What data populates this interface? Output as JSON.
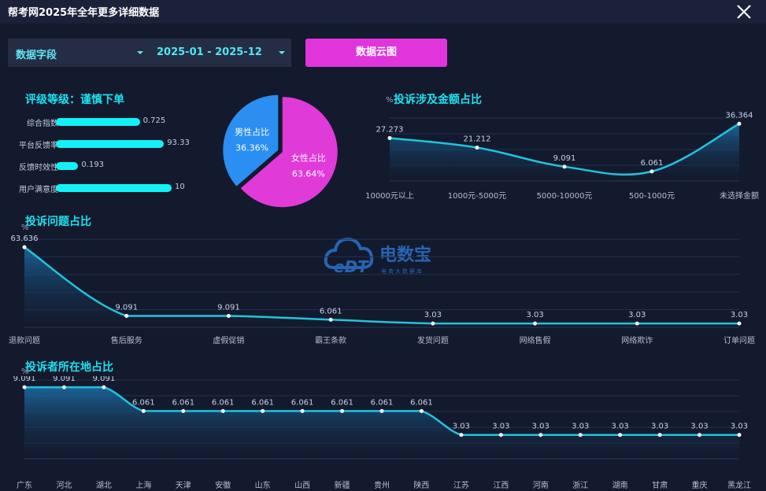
{
  "window": {
    "title": "帮考网2025年全年更多详细数据"
  },
  "toolbar": {
    "field_select": "数据字段",
    "date_range": "2025-01 - 2025-12",
    "cloud_button": "数据云图"
  },
  "rating": {
    "title_prefix": "评级等级：",
    "title_value": "谨慎下单",
    "items": [
      {
        "label": "综合指数",
        "value": "0.725",
        "fraction": 0.725
      },
      {
        "label": "平台反馈率",
        "value": "93.33",
        "fraction": 0.9333
      },
      {
        "label": "反馈时效性",
        "value": "0.193",
        "fraction": 0.193
      },
      {
        "label": "用户满意度",
        "value": "10",
        "fraction": 1.0
      }
    ]
  },
  "watermark": {
    "brand": "电数宝",
    "sub": "电商大数据库",
    "logo_text": "eDT"
  },
  "colors": {
    "accent": "#1fe0ee",
    "male": "#2b8ef2",
    "female": "#e03ad8",
    "bar": "#12f2f6",
    "line": "#22c3dc"
  },
  "chart_data": [
    {
      "type": "pie",
      "title": "",
      "slices": [
        {
          "name": "男性占比",
          "value": 36.36,
          "label": "36.36%",
          "color": "#2b8ef2"
        },
        {
          "name": "女性占比",
          "value": 63.64,
          "label": "63.64%",
          "color": "#e03ad8"
        }
      ]
    },
    {
      "type": "area",
      "title": "投诉涉及金额占比",
      "ylabel": "%",
      "categories": [
        "10000元以上",
        "1000元-5000元",
        "5000-10000元",
        "500-1000元",
        "未选择金额"
      ],
      "values": [
        27.273,
        21.212,
        9.091,
        6.061,
        36.364
      ],
      "labels": [
        "27.273",
        "21.212",
        "9.091",
        "6.061",
        "36.364"
      ],
      "ylim": [
        0,
        40
      ],
      "grid": true
    },
    {
      "type": "area",
      "title": "投诉问题占比",
      "ylabel": "%",
      "categories": [
        "退款问题",
        "售后服务",
        "虚假促销",
        "霸王条款",
        "发货问题",
        "网络售假",
        "网络欺诈",
        "订单问题"
      ],
      "values": [
        63.636,
        9.091,
        9.091,
        6.061,
        3.03,
        3.03,
        3.03,
        3.03
      ],
      "labels": [
        "63.636",
        "9.091",
        "9.091",
        "6.061",
        "3.03",
        "3.03",
        "3.03",
        "3.03"
      ],
      "ylim": [
        0,
        70
      ],
      "grid": true
    },
    {
      "type": "area",
      "title": "投诉者所在地占比",
      "ylabel": "%",
      "categories": [
        "广东",
        "河北",
        "湖北",
        "上海",
        "天津",
        "安徽",
        "山东",
        "山西",
        "新疆",
        "贵州",
        "陕西",
        "江苏",
        "江西",
        "河南",
        "浙江",
        "湖南",
        "甘肃",
        "重庆",
        "黑龙江"
      ],
      "values": [
        9.091,
        9.091,
        9.091,
        6.061,
        6.061,
        6.061,
        6.061,
        6.061,
        6.061,
        6.061,
        6.061,
        3.03,
        3.03,
        3.03,
        3.03,
        3.03,
        3.03,
        3.03,
        3.03
      ],
      "labels": [
        "9.091",
        "9.091",
        "9.091",
        "6.061",
        "6.061",
        "6.061",
        "6.061",
        "6.061",
        "6.061",
        "6.061",
        "6.061",
        "3.03",
        "3.03",
        "3.03",
        "3.03",
        "3.03",
        "3.03",
        "3.03",
        "3.03"
      ],
      "ylim": [
        0,
        10
      ],
      "grid": true
    }
  ]
}
